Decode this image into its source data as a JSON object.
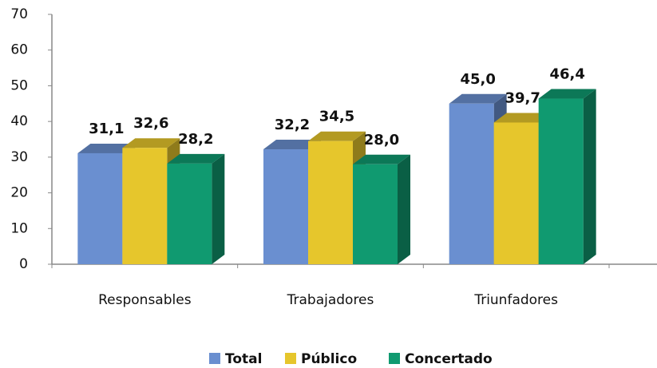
{
  "chart_data": {
    "type": "bar3d",
    "categories": [
      "Responsables",
      "Trabajadores",
      "Triunfadores"
    ],
    "series": [
      {
        "name": "Total",
        "color": "#6a8fd0",
        "values": [
          31.1,
          32.2,
          45.0
        ],
        "value_labels": [
          "31,1",
          "32,2",
          "45,0"
        ]
      },
      {
        "name": "Público",
        "color": "#e6c62c",
        "values": [
          32.6,
          34.5,
          39.7
        ],
        "value_labels": [
          "32,6",
          "34,5",
          "39,7"
        ]
      },
      {
        "name": "Concertado",
        "color": "#109a70",
        "values": [
          28.2,
          28.0,
          46.4
        ],
        "value_labels": [
          "28,2",
          "28,0",
          "46,4"
        ]
      }
    ],
    "ylim": [
      0,
      70
    ],
    "yticks": [
      0,
      10,
      20,
      30,
      40,
      50,
      60,
      70
    ],
    "legend": "bottom"
  }
}
